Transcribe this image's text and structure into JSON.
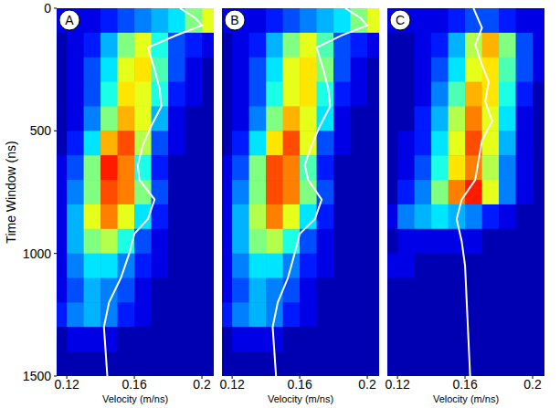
{
  "chart_data": [
    {
      "type": "heatmap",
      "title": "A",
      "x_label": "Velocity (m/ns)",
      "y_label": "Time Window (ns)",
      "xlim": [
        0.114,
        0.207
      ],
      "xticks": [
        0.12,
        0.16,
        0.2
      ],
      "ylim": [
        1500,
        0
      ],
      "yticks": [
        0,
        500,
        1000,
        1500
      ],
      "x_bins": [
        0.11,
        0.12,
        0.13,
        0.14,
        0.15,
        0.16,
        0.17,
        0.18,
        0.19,
        0.2,
        0.21
      ],
      "y_bins": [
        0,
        100,
        200,
        300,
        400,
        500,
        600,
        700,
        800,
        900,
        1000,
        1100,
        1200,
        1300,
        1400,
        1500
      ],
      "color_range": [
        0,
        1
      ],
      "cells": [
        [
          0.1,
          0.1,
          0.1,
          0.15,
          0.2,
          0.25,
          0.3,
          0.35,
          0.5,
          0.6
        ],
        [
          0.05,
          0.1,
          0.15,
          0.3,
          0.5,
          0.6,
          0.4,
          0.2,
          0.15,
          0.1
        ],
        [
          0.05,
          0.1,
          0.2,
          0.35,
          0.6,
          0.65,
          0.45,
          0.2,
          0.1,
          0.05
        ],
        [
          0.05,
          0.1,
          0.2,
          0.4,
          0.65,
          0.6,
          0.4,
          0.15,
          0.1,
          0.05
        ],
        [
          0.05,
          0.1,
          0.25,
          0.5,
          0.7,
          0.6,
          0.3,
          0.1,
          0.05,
          0.05
        ],
        [
          0.05,
          0.15,
          0.35,
          0.7,
          0.8,
          0.55,
          0.2,
          0.1,
          0.05,
          0.05
        ],
        [
          0.1,
          0.2,
          0.5,
          0.85,
          0.75,
          0.4,
          0.15,
          0.05,
          0.05,
          0.05
        ],
        [
          0.1,
          0.25,
          0.5,
          0.8,
          0.75,
          0.5,
          0.2,
          0.05,
          0.05,
          0.05
        ],
        [
          0.1,
          0.3,
          0.6,
          0.75,
          0.6,
          0.35,
          0.15,
          0.05,
          0.05,
          0.05
        ],
        [
          0.1,
          0.3,
          0.5,
          0.55,
          0.4,
          0.2,
          0.1,
          0.05,
          0.05,
          0.05
        ],
        [
          0.1,
          0.25,
          0.35,
          0.35,
          0.25,
          0.15,
          0.1,
          0.05,
          0.05,
          0.05
        ],
        [
          0.1,
          0.2,
          0.3,
          0.25,
          0.2,
          0.1,
          0.05,
          0.05,
          0.05,
          0.05
        ],
        [
          0.15,
          0.25,
          0.3,
          0.25,
          0.15,
          0.1,
          0.05,
          0.05,
          0.05,
          0.05
        ],
        [
          0.05,
          0.1,
          0.1,
          0.1,
          0.05,
          0.05,
          0.05,
          0.05,
          0.05,
          0.05
        ],
        [
          0.05,
          0.05,
          0.05,
          0.05,
          0.05,
          0.05,
          0.05,
          0.05,
          0.05,
          0.05
        ]
      ],
      "series": [
        {
          "type": "line",
          "color": "#ffffff",
          "x": [
            0.187,
            0.196,
            0.2,
            0.185,
            0.168,
            0.172,
            0.175,
            0.176,
            0.17,
            0.165,
            0.162,
            0.163,
            0.172,
            0.168,
            0.16,
            0.157,
            0.152,
            0.145,
            0.142,
            0.143,
            0.144
          ],
          "values": [
            0,
            40,
            70,
            110,
            160,
            250,
            330,
            400,
            480,
            560,
            640,
            700,
            780,
            860,
            920,
            1000,
            1100,
            1200,
            1300,
            1400,
            1500
          ]
        }
      ]
    },
    {
      "type": "heatmap",
      "title": "B",
      "x_label": "Velocity (m/ns)",
      "tick_labels": "x",
      "xlim": [
        0.114,
        0.207
      ],
      "xticks": [
        0.12,
        0.16,
        0.2
      ],
      "ylim": [
        1500,
        0
      ],
      "x_bins": [
        0.11,
        0.12,
        0.13,
        0.14,
        0.15,
        0.16,
        0.17,
        0.18,
        0.19,
        0.2,
        0.21
      ],
      "y_bins": [
        0,
        100,
        200,
        300,
        400,
        500,
        600,
        700,
        800,
        900,
        1000,
        1100,
        1200,
        1300,
        1400,
        1500
      ],
      "color_range": [
        0,
        1
      ],
      "cells": [
        [
          0.1,
          0.1,
          0.1,
          0.15,
          0.2,
          0.25,
          0.3,
          0.35,
          0.5,
          0.6
        ],
        [
          0.05,
          0.1,
          0.15,
          0.3,
          0.5,
          0.6,
          0.45,
          0.2,
          0.15,
          0.1
        ],
        [
          0.05,
          0.1,
          0.2,
          0.35,
          0.6,
          0.65,
          0.5,
          0.2,
          0.1,
          0.05
        ],
        [
          0.05,
          0.1,
          0.2,
          0.4,
          0.6,
          0.65,
          0.4,
          0.15,
          0.1,
          0.05
        ],
        [
          0.05,
          0.1,
          0.25,
          0.5,
          0.7,
          0.6,
          0.35,
          0.1,
          0.05,
          0.05
        ],
        [
          0.05,
          0.15,
          0.35,
          0.65,
          0.8,
          0.6,
          0.2,
          0.1,
          0.05,
          0.05
        ],
        [
          0.1,
          0.2,
          0.5,
          0.8,
          0.75,
          0.45,
          0.15,
          0.05,
          0.05,
          0.05
        ],
        [
          0.1,
          0.25,
          0.5,
          0.8,
          0.75,
          0.5,
          0.2,
          0.05,
          0.05,
          0.05
        ],
        [
          0.1,
          0.3,
          0.55,
          0.75,
          0.6,
          0.35,
          0.15,
          0.05,
          0.05,
          0.05
        ],
        [
          0.1,
          0.3,
          0.5,
          0.55,
          0.4,
          0.2,
          0.1,
          0.05,
          0.05,
          0.05
        ],
        [
          0.1,
          0.25,
          0.35,
          0.35,
          0.25,
          0.15,
          0.1,
          0.05,
          0.05,
          0.05
        ],
        [
          0.1,
          0.2,
          0.3,
          0.25,
          0.2,
          0.1,
          0.05,
          0.05,
          0.05,
          0.05
        ],
        [
          0.15,
          0.25,
          0.3,
          0.25,
          0.15,
          0.1,
          0.05,
          0.05,
          0.05,
          0.05
        ],
        [
          0.05,
          0.1,
          0.1,
          0.1,
          0.05,
          0.05,
          0.05,
          0.05,
          0.05,
          0.05
        ],
        [
          0.05,
          0.05,
          0.05,
          0.05,
          0.05,
          0.05,
          0.05,
          0.05,
          0.05,
          0.05
        ]
      ],
      "series": [
        {
          "type": "line",
          "color": "#ffffff",
          "x": [
            0.187,
            0.196,
            0.2,
            0.185,
            0.17,
            0.174,
            0.177,
            0.178,
            0.172,
            0.167,
            0.163,
            0.165,
            0.173,
            0.169,
            0.16,
            0.157,
            0.153,
            0.147,
            0.144,
            0.145,
            0.146
          ],
          "values": [
            0,
            40,
            70,
            110,
            160,
            250,
            330,
            400,
            480,
            560,
            640,
            700,
            780,
            860,
            920,
            1000,
            1100,
            1200,
            1300,
            1400,
            1500
          ]
        }
      ]
    },
    {
      "type": "heatmap",
      "title": "C",
      "x_label": "Velocity (m/ns)",
      "tick_labels": "x",
      "xlim": [
        0.114,
        0.207
      ],
      "xticks": [
        0.12,
        0.16,
        0.2
      ],
      "ylim": [
        1500,
        0
      ],
      "x_bins": [
        0.11,
        0.12,
        0.13,
        0.14,
        0.15,
        0.16,
        0.17,
        0.18,
        0.19,
        0.2,
        0.21
      ],
      "y_bins": [
        0,
        100,
        200,
        300,
        400,
        500,
        600,
        700,
        800,
        900,
        1000,
        1100,
        1200,
        1300,
        1400,
        1500
      ],
      "color_range": [
        0,
        1
      ],
      "cells": [
        [
          0.1,
          0.1,
          0.1,
          0.1,
          0.15,
          0.2,
          0.2,
          0.15,
          0.1,
          0.1
        ],
        [
          0.05,
          0.05,
          0.1,
          0.15,
          0.3,
          0.55,
          0.7,
          0.5,
          0.2,
          0.1
        ],
        [
          0.05,
          0.05,
          0.1,
          0.2,
          0.35,
          0.6,
          0.65,
          0.45,
          0.2,
          0.1
        ],
        [
          0.05,
          0.05,
          0.1,
          0.25,
          0.45,
          0.7,
          0.65,
          0.4,
          0.15,
          0.05
        ],
        [
          0.05,
          0.05,
          0.15,
          0.3,
          0.55,
          0.75,
          0.6,
          0.35,
          0.1,
          0.05
        ],
        [
          0.05,
          0.1,
          0.15,
          0.35,
          0.6,
          0.8,
          0.6,
          0.3,
          0.1,
          0.05
        ],
        [
          0.05,
          0.1,
          0.2,
          0.4,
          0.65,
          0.75,
          0.55,
          0.25,
          0.1,
          0.05
        ],
        [
          0.05,
          0.15,
          0.25,
          0.5,
          0.75,
          0.85,
          0.6,
          0.25,
          0.1,
          0.05
        ],
        [
          0.1,
          0.25,
          0.3,
          0.35,
          0.3,
          0.25,
          0.15,
          0.1,
          0.05,
          0.05
        ],
        [
          0.05,
          0.1,
          0.1,
          0.1,
          0.1,
          0.1,
          0.05,
          0.05,
          0.05,
          0.05
        ],
        [
          0.1,
          0.1,
          0.05,
          0.05,
          0.05,
          0.05,
          0.05,
          0.05,
          0.05,
          0.05
        ],
        [
          0.05,
          0.05,
          0.05,
          0.05,
          0.05,
          0.05,
          0.05,
          0.05,
          0.05,
          0.05
        ],
        [
          0.05,
          0.05,
          0.05,
          0.05,
          0.05,
          0.05,
          0.05,
          0.05,
          0.05,
          0.05
        ],
        [
          0.05,
          0.05,
          0.05,
          0.05,
          0.05,
          0.05,
          0.05,
          0.05,
          0.05,
          0.05
        ],
        [
          0.05,
          0.05,
          0.05,
          0.05,
          0.05,
          0.05,
          0.05,
          0.05,
          0.05,
          0.05
        ]
      ],
      "series": [
        {
          "type": "line",
          "color": "#ffffff",
          "x": [
            0.165,
            0.17,
            0.166,
            0.17,
            0.174,
            0.172,
            0.176,
            0.17,
            0.168,
            0.166,
            0.158,
            0.155,
            0.158,
            0.16,
            0.161,
            0.162,
            0.163
          ],
          "values": [
            0,
            80,
            150,
            230,
            300,
            380,
            460,
            540,
            620,
            700,
            780,
            860,
            950,
            1050,
            1200,
            1350,
            1500
          ]
        }
      ]
    }
  ]
}
